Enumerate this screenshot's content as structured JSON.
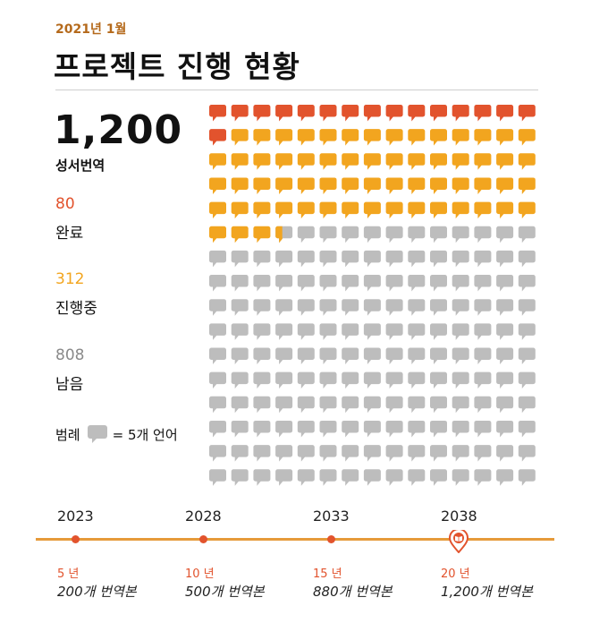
{
  "header": {
    "date": "2021년 1월",
    "title": "프로젝트 진행 현황"
  },
  "summary": {
    "total": "1,200",
    "total_label": "성서번역",
    "stats": [
      {
        "value": "80",
        "label": "완료",
        "color": "#e2532d"
      },
      {
        "value": "312",
        "label": "진행중",
        "color": "#f2a51f"
      },
      {
        "value": "808",
        "label": "남음",
        "color": "#8a8a8a"
      }
    ],
    "legend": {
      "prefix": "범례",
      "text": "= 5개 언어"
    }
  },
  "chart_data": {
    "type": "waffle",
    "unit": 5,
    "columns": 15,
    "rows": 16,
    "total": 1200,
    "categories": [
      {
        "name": "완료",
        "value": 80,
        "color": "#e2532d"
      },
      {
        "name": "진행중",
        "value": 312,
        "color": "#f2a51f"
      },
      {
        "name": "남음",
        "value": 808,
        "color": "#bdbdbd"
      }
    ]
  },
  "timeline": {
    "line_color": "#e69a3a",
    "ticks": [
      {
        "year": "2023",
        "years": "5 년",
        "note": "200개 번역본"
      },
      {
        "year": "2028",
        "years": "10 년",
        "note": "500개 번역본"
      },
      {
        "year": "2033",
        "years": "15 년",
        "note": "880개 번역본"
      },
      {
        "year": "2038",
        "years": "20 년",
        "note": "1,200개 번역본"
      }
    ]
  }
}
